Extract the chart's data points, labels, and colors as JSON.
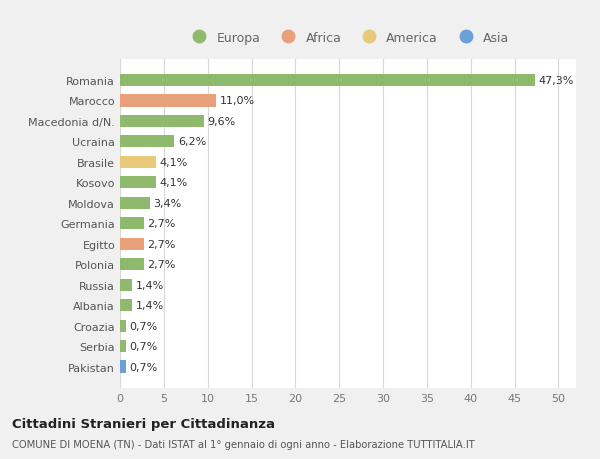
{
  "categories": [
    "Pakistan",
    "Serbia",
    "Croazia",
    "Albania",
    "Russia",
    "Polonia",
    "Egitto",
    "Germania",
    "Moldova",
    "Kosovo",
    "Brasile",
    "Ucraina",
    "Macedonia d/N.",
    "Marocco",
    "Romania"
  ],
  "values": [
    0.7,
    0.7,
    0.7,
    1.4,
    1.4,
    2.7,
    2.7,
    2.7,
    3.4,
    4.1,
    4.1,
    6.2,
    9.6,
    11.0,
    47.3
  ],
  "labels": [
    "0,7%",
    "0,7%",
    "0,7%",
    "1,4%",
    "1,4%",
    "2,7%",
    "2,7%",
    "2,7%",
    "3,4%",
    "4,1%",
    "4,1%",
    "6,2%",
    "9,6%",
    "11,0%",
    "47,3%"
  ],
  "colors": [
    "#6a9fd8",
    "#8fba6e",
    "#8fba6e",
    "#8fba6e",
    "#8fba6e",
    "#8fba6e",
    "#e8a07a",
    "#8fba6e",
    "#8fba6e",
    "#8fba6e",
    "#e8c97a",
    "#8fba6e",
    "#8fba6e",
    "#e8a07a",
    "#8fba6e"
  ],
  "legend": [
    {
      "label": "Europa",
      "color": "#8fba6e"
    },
    {
      "label": "Africa",
      "color": "#e8a07a"
    },
    {
      "label": "America",
      "color": "#e8c97a"
    },
    {
      "label": "Asia",
      "color": "#6a9fd8"
    }
  ],
  "xlim": [
    0,
    52
  ],
  "xticks": [
    0,
    5,
    10,
    15,
    20,
    25,
    30,
    35,
    40,
    45,
    50
  ],
  "title": "Cittadini Stranieri per Cittadinanza",
  "subtitle": "COMUNE DI MOENA (TN) - Dati ISTAT al 1° gennaio di ogni anno - Elaborazione TUTTITALIA.IT",
  "background_color": "#f0f0f0",
  "plot_background": "#ffffff",
  "grid_color": "#d8d8d8",
  "bar_height": 0.6
}
